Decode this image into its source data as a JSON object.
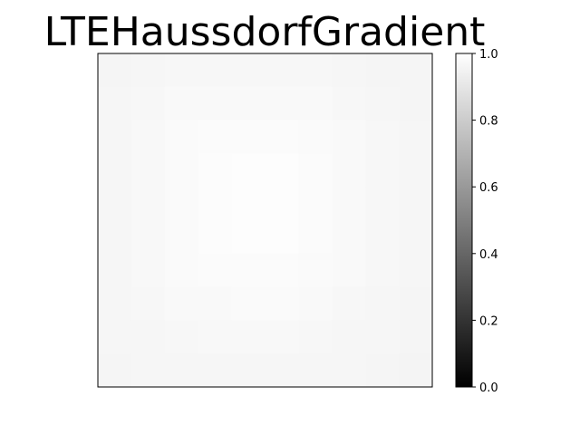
{
  "chart_data": {
    "type": "heatmap",
    "title": "LTEHaussdorfGradient",
    "xlabel": "",
    "ylabel": "",
    "colormap": "gray",
    "x_ticks": [],
    "y_ticks": [],
    "values": [
      [
        0.962,
        0.965,
        0.968,
        0.968,
        0.968,
        0.968,
        0.968,
        0.965,
        0.962,
        0.96
      ],
      [
        0.965,
        0.97,
        0.975,
        0.978,
        0.978,
        0.978,
        0.975,
        0.97,
        0.965,
        0.962
      ],
      [
        0.966,
        0.972,
        0.98,
        0.985,
        0.985,
        0.985,
        0.982,
        0.975,
        0.968,
        0.963
      ],
      [
        0.966,
        0.973,
        0.982,
        0.99,
        0.992,
        0.992,
        0.985,
        0.977,
        0.968,
        0.963
      ],
      [
        0.966,
        0.973,
        0.982,
        0.99,
        0.992,
        0.992,
        0.985,
        0.977,
        0.968,
        0.963
      ],
      [
        0.966,
        0.973,
        0.982,
        0.99,
        0.992,
        0.992,
        0.985,
        0.977,
        0.968,
        0.963
      ],
      [
        0.966,
        0.972,
        0.98,
        0.985,
        0.986,
        0.986,
        0.982,
        0.975,
        0.968,
        0.963
      ],
      [
        0.965,
        0.97,
        0.975,
        0.978,
        0.98,
        0.98,
        0.976,
        0.97,
        0.965,
        0.962
      ],
      [
        0.963,
        0.966,
        0.97,
        0.972,
        0.972,
        0.972,
        0.97,
        0.966,
        0.963,
        0.96
      ],
      [
        0.96,
        0.963,
        0.965,
        0.966,
        0.966,
        0.966,
        0.965,
        0.963,
        0.96,
        0.958
      ]
    ],
    "colorbar": {
      "range": [
        0.0,
        1.0
      ],
      "ticks": [
        0.0,
        0.2,
        0.4,
        0.6,
        0.8,
        1.0
      ],
      "tick_labels": [
        "0.0",
        "0.2",
        "0.4",
        "0.6",
        "0.8",
        "1.0"
      ]
    },
    "grid": false,
    "legend": "none"
  }
}
